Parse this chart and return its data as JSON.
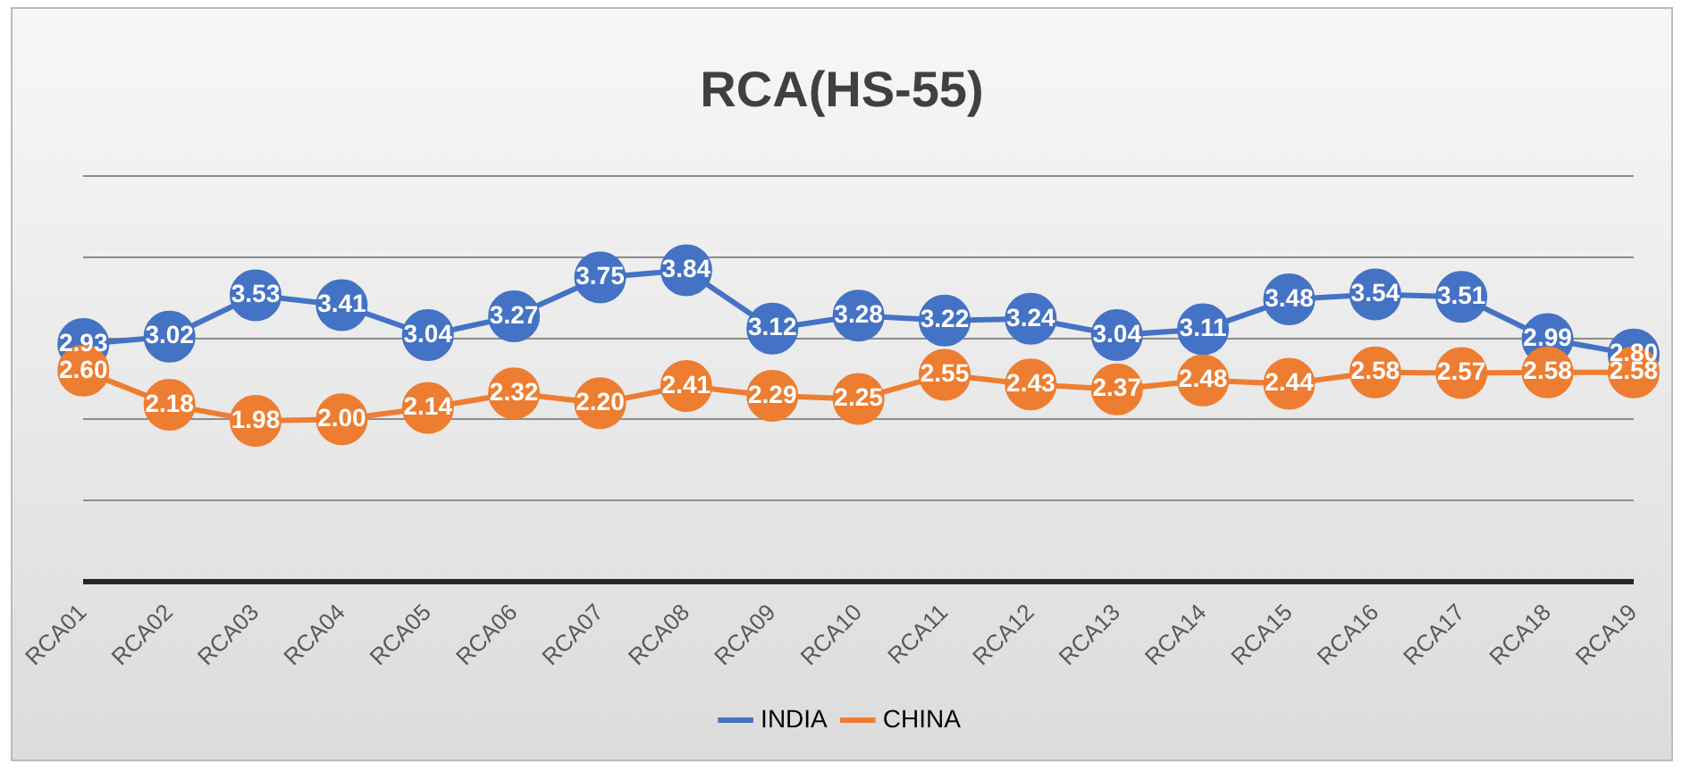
{
  "chart_data": {
    "type": "line",
    "title": "RCA(HS-55)",
    "categories": [
      "RCA01",
      "RCA02",
      "RCA03",
      "RCA04",
      "RCA05",
      "RCA06",
      "RCA07",
      "RCA08",
      "RCA09",
      "RCA10",
      "RCA11",
      "RCA12",
      "RCA13",
      "RCA14",
      "RCA15",
      "RCA16",
      "RCA17",
      "RCA18",
      "RCA19"
    ],
    "series": [
      {
        "name": "INDIA",
        "color": "#4472c4",
        "values": [
          2.93,
          3.02,
          3.53,
          3.41,
          3.04,
          3.27,
          3.75,
          3.84,
          3.12,
          3.28,
          3.22,
          3.24,
          3.04,
          3.11,
          3.48,
          3.54,
          3.51,
          2.99,
          2.8
        ],
        "value_labels": [
          "2.93",
          "3.02",
          "3.53",
          "3.41",
          "3.04",
          "3.27",
          "3.75",
          "3.84",
          "3.12",
          "3.28",
          "3.22",
          "3.24",
          "3.04",
          "3.11",
          "3.48",
          "3.54",
          "3.51",
          "2.99",
          "2.80"
        ]
      },
      {
        "name": "CHINA",
        "color": "#ed7d31",
        "values": [
          2.6,
          2.18,
          1.98,
          2.0,
          2.14,
          2.32,
          2.2,
          2.41,
          2.29,
          2.25,
          2.55,
          2.43,
          2.37,
          2.48,
          2.44,
          2.58,
          2.57,
          2.58,
          2.58
        ],
        "value_labels": [
          "2.60",
          "2.18",
          "1.98",
          "2.00",
          "2.14",
          "2.32",
          "2.20",
          "2.41",
          "2.29",
          "2.25",
          "2.55",
          "2.43",
          "2.37",
          "2.48",
          "2.44",
          "2.58",
          "2.57",
          "2.58",
          "2.58"
        ]
      }
    ],
    "ylim": [
      0,
      5
    ],
    "yticks": [
      {
        "value": 0,
        "label": null
      },
      {
        "value": 1,
        "label": null
      },
      {
        "value": 2,
        "label": null
      },
      {
        "value": 3,
        "label": null
      },
      {
        "value": 4,
        "label": null
      },
      {
        "value": 5,
        "label": null
      }
    ],
    "tick_labels": "x",
    "grid": "y",
    "legend": "bottom",
    "marker": "circle",
    "line_style": "solid"
  }
}
